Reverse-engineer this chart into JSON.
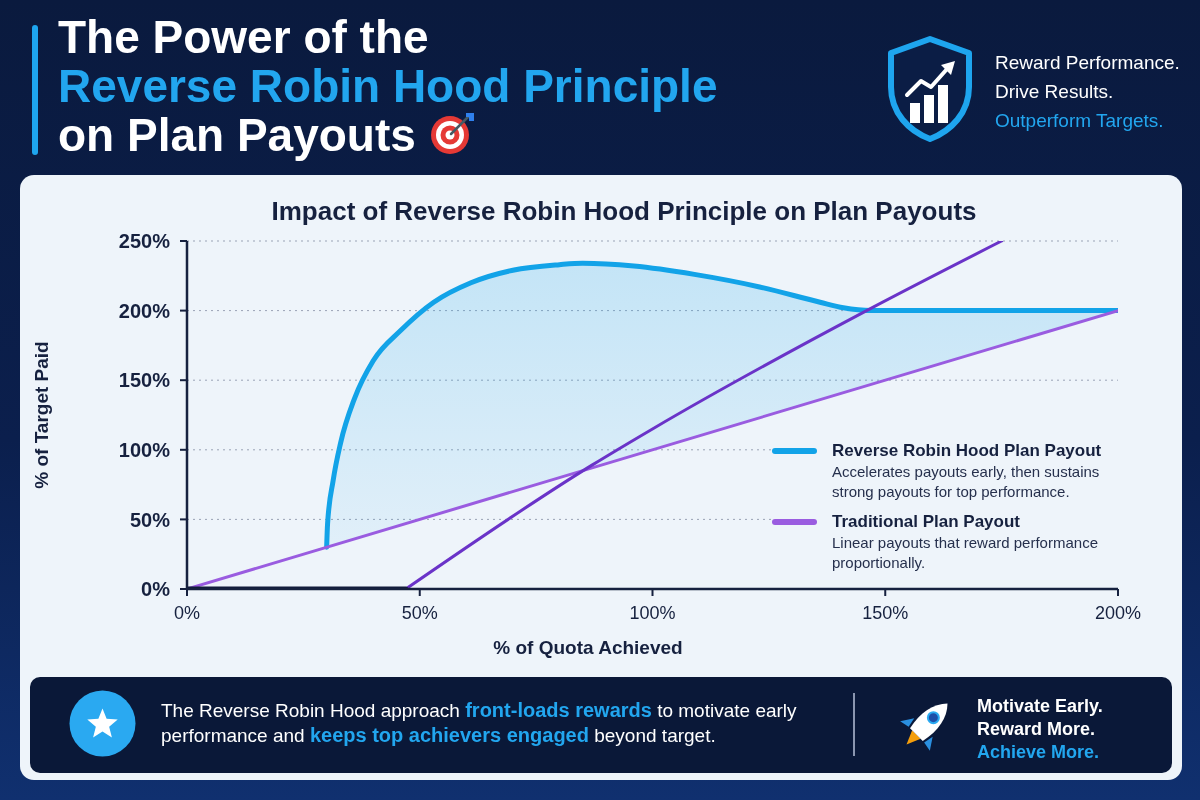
{
  "chart_data": {
    "type": "line",
    "title": "The Power of the\nReverse Robin Hood Principle\non Plan Payouts",
    "subtitle": "Impact of Reverse Robin Hood Principle on Plan Payouts",
    "xlabel": "% of Quota Achieved",
    "ylabel": "% of Target Paid",
    "xlim": [
      0,
      200
    ],
    "xticks": [
      {
        "value": 0,
        "label": "0%"
      },
      {
        "value": 50,
        "label": "50%"
      },
      {
        "value": 100,
        "label": "100%"
      },
      {
        "value": 150,
        "label": "150%"
      },
      {
        "value": 200,
        "label": "200%"
      }
    ],
    "ylim": [
      0,
      250
    ],
    "yticks": [
      {
        "value": 0,
        "label": "0%"
      },
      {
        "value": 50,
        "label": "50%"
      },
      {
        "value": 100,
        "label": "100%"
      },
      {
        "value": 150,
        "label": "150%"
      },
      {
        "value": 200,
        "label": "200%"
      },
      {
        "value": 250,
        "label": "250%"
      }
    ],
    "grid": "y",
    "legend": "bottom right",
    "series": [
      {
        "name": "Reverse Robin Hood Plan Payout",
        "color": "#12a3e8",
        "x": [
          30,
          30.2,
          31.4,
          33,
          36,
          40,
          46,
          53,
          61,
          70,
          80,
          85,
          96,
          109,
          123,
          136,
          141,
          147,
          200
        ],
        "values": [
          30,
          47,
          78,
          105,
          137,
          164,
          186,
          206,
          220,
          229,
          233,
          234,
          232,
          226,
          217,
          206,
          202,
          200,
          200
        ],
        "lower": [
          30,
          30.2,
          31.4,
          33,
          36,
          40,
          46,
          53,
          61,
          70,
          80,
          85,
          96,
          109,
          123,
          136,
          141,
          147,
          200
        ],
        "upper": [
          30,
          47,
          78,
          105,
          137,
          164,
          186,
          206,
          220,
          229,
          233,
          234,
          232,
          226,
          217,
          206,
          202,
          200,
          200
        ]
      },
      {
        "name": "Traditional Plan Payout",
        "color": "#9a5ce0",
        "x": [
          0,
          200
        ],
        "values": [
          0,
          200
        ]
      },
      {
        "color": "#6a33c8",
        "x": [
          47,
          87,
          100,
          146,
          175
        ],
        "values": [
          0,
          89,
          115,
          200,
          250
        ]
      },
      {
        "color": "#121b3b",
        "x": [
          0,
          47
        ],
        "values": [
          0,
          0
        ]
      }
    ],
    "annotations": [
      "Reward Performance.",
      "Drive Results.",
      "Outperform Targets.",
      "Accelerates payouts early, then sustains strong payouts for top performance.",
      "Linear payouts that reward performance proportionally.",
      "The Reverse Robin Hood approach",
      "front-loads rewards",
      "to motivate early",
      "performance and",
      "keeps top achievers engaged",
      "beyond target.",
      "Motivate Early.",
      "Reward More.",
      "Achieve More."
    ]
  }
}
